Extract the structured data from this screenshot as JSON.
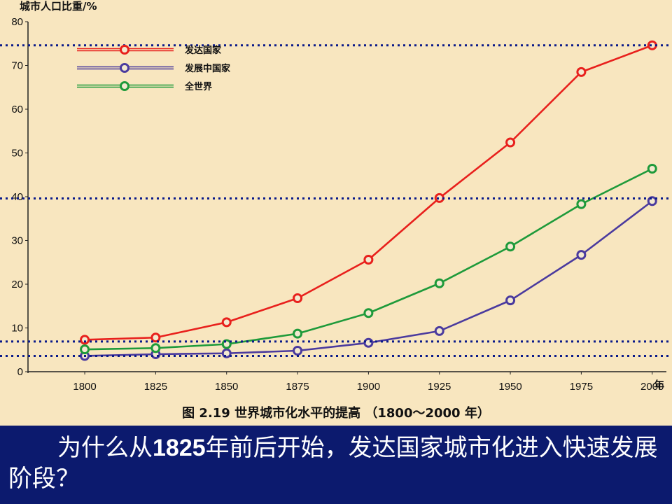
{
  "chart_data": {
    "type": "line",
    "ylabel": "城市人口比重/%",
    "xlabel": "年",
    "caption": "图 2.19  世界城市化水平的提高 （1800～2000 年）",
    "x": [
      1800,
      1825,
      1850,
      1875,
      1900,
      1925,
      1950,
      1975,
      2000
    ],
    "xlim": [
      1780,
      2005
    ],
    "ylim": [
      0,
      80
    ],
    "yticks": [
      0,
      10,
      20,
      30,
      40,
      50,
      60,
      70,
      80
    ],
    "series": [
      {
        "name": "发达国家",
        "color": "#e8201c",
        "values": [
          7.3,
          7.8,
          11.3,
          16.8,
          25.6,
          39.7,
          52.4,
          68.5,
          74.6
        ]
      },
      {
        "name": "发展中国家",
        "color": "#4a3a9e",
        "values": [
          3.6,
          4.0,
          4.2,
          4.8,
          6.6,
          9.3,
          16.3,
          26.7,
          39.0
        ]
      },
      {
        "name": "全世界",
        "color": "#1e9a3a",
        "values": [
          5.1,
          5.4,
          6.3,
          8.7,
          13.4,
          20.2,
          28.6,
          38.3,
          46.4
        ]
      }
    ],
    "reference_lines": [
      74.6,
      39.6,
      6.9,
      3.6
    ],
    "reference_color": "#0a1a8a"
  },
  "question": {
    "text_before": "为什么从",
    "highlight": "1825",
    "text_after": "年前后开始，发达国家城市化进入快速发展阶段？"
  }
}
